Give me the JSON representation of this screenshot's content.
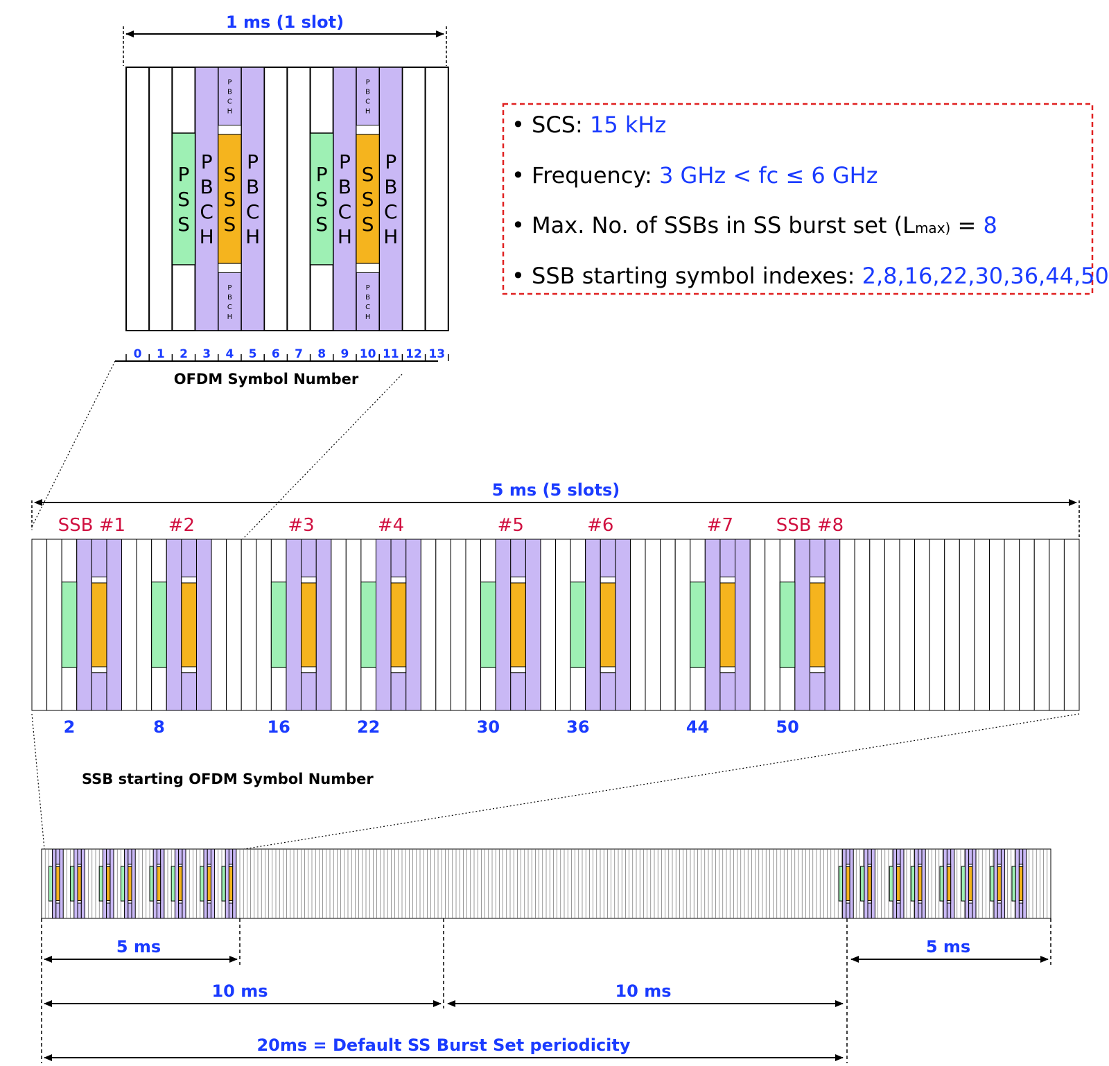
{
  "colors": {
    "pss": "#9ef0b4",
    "pbch": "#c9b8f5",
    "sss": "#f5b41e",
    "blue_text": "#1a3bff",
    "red_text": "#d01040",
    "box_border": "#e02020"
  },
  "slot_view": {
    "duration_label": "1 ms (1 slot)",
    "symbol_numbers": [
      "0",
      "1",
      "2",
      "3",
      "4",
      "5",
      "6",
      "7",
      "8",
      "9",
      "10",
      "11",
      "12",
      "13"
    ],
    "axis_title": "OFDM Symbol Number",
    "pss_label": "PSS",
    "pbch_label": "PBCH",
    "sss_label": "SSS",
    "pbch_small_label": "PBCH"
  },
  "info_box": {
    "items": [
      {
        "label": "SCS:",
        "value": "15 kHz"
      },
      {
        "label": "Frequency:",
        "value": "3 GHz < fc ≤ 6 GHz"
      },
      {
        "label": "Max. No. of SSBs in SS burst set (L",
        "sub": "max)",
        "suffix": " =",
        "value": "8"
      },
      {
        "label": "SSB starting symbol indexes:",
        "value": "2,8,16,22,30,36,44,50"
      }
    ]
  },
  "burst_view": {
    "duration_label": "5 ms (5 slots)",
    "ssb_labels": [
      "SSB #1",
      "#2",
      "#3",
      "#4",
      "#5",
      "#6",
      "#7",
      "SSB #8"
    ],
    "start_symbols": [
      "2",
      "8",
      "16",
      "22",
      "30",
      "36",
      "44",
      "50"
    ],
    "axis_title": "SSB starting OFDM Symbol Number"
  },
  "period_view": {
    "first_5ms": "5 ms",
    "second_5ms": "5 ms",
    "first_10ms": "10 ms",
    "second_10ms": "10 ms",
    "periodicity": "20ms = Default SS Burst Set periodicity"
  }
}
